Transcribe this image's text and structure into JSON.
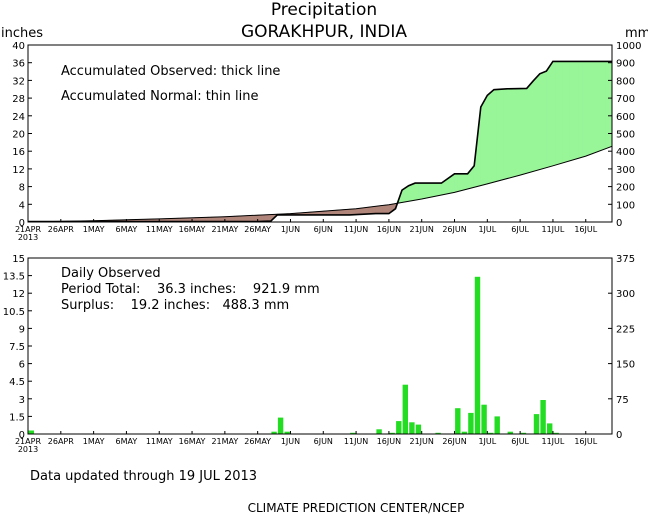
{
  "header": {
    "title": "Precipitation",
    "location": "GORAKHPUR, INDIA",
    "left_unit": "inches",
    "right_unit": "mm"
  },
  "annotations": {
    "accum_observed": "Accumulated Observed: thick line",
    "accum_normal": "Accumulated Normal: thin line",
    "daily_observed": "Daily Observed",
    "period_total": "Period Total:    36.3 inches:    921.9 mm",
    "surplus": "Surplus:    19.2 inches:   488.3 mm"
  },
  "footer": {
    "updated": "Data updated through 19 JUL 2013",
    "credit": "CLIMATE PREDICTION CENTER/NCEP"
  },
  "colors": {
    "surplus_fill": "#98f598",
    "deficit_fill": "#b0857a",
    "daily_bar": "#22dd22",
    "line": "#000000"
  },
  "chart_data": [
    {
      "type": "line",
      "title": "Precipitation",
      "subtitle": "GORAKHPUR, INDIA",
      "ylabel": "inches",
      "y2label": "mm",
      "ylim": [
        0,
        40
      ],
      "y2lim": [
        0,
        1000
      ],
      "x_ticks": [
        "21APR\n2013",
        "26APR",
        "1MAY",
        "6MAY",
        "11MAY",
        "16MAY",
        "21MAY",
        "26MAY",
        "1JUN",
        "6JUN",
        "11JUN",
        "16JUN",
        "21JUN",
        "26JUN",
        "1JUL",
        "6JUL",
        "11JUL",
        "16JUL"
      ],
      "y_ticks": [
        "0",
        "4",
        "8",
        "12",
        "16",
        "20",
        "24",
        "28",
        "32",
        "36",
        "40"
      ],
      "y2_ticks": [
        "0",
        "100",
        "200",
        "300",
        "400",
        "500",
        "600",
        "700",
        "800",
        "900",
        "1000"
      ],
      "series": [
        {
          "name": "Accumulated Observed",
          "x": [
            "2013-04-21",
            "2013-05-26",
            "2013-05-28",
            "2013-05-29",
            "2013-06-01",
            "2013-06-09",
            "2013-06-13",
            "2013-06-15",
            "2013-06-16",
            "2013-06-17",
            "2013-06-18",
            "2013-06-19",
            "2013-06-21",
            "2013-06-22",
            "2013-06-23",
            "2013-06-25",
            "2013-06-27",
            "2013-06-28",
            "2013-06-29",
            "2013-06-30",
            "2013-07-01",
            "2013-07-03",
            "2013-07-06",
            "2013-07-07",
            "2013-07-08",
            "2013-07-09",
            "2013-07-10",
            "2013-07-19"
          ],
          "y": [
            0.1,
            0.1,
            0.2,
            1.6,
            1.6,
            1.6,
            1.9,
            1.9,
            3.0,
            7.2,
            8.2,
            8.8,
            8.8,
            8.8,
            8.8,
            10.9,
            10.9,
            12.7,
            26.0,
            28.6,
            29.9,
            30.1,
            30.2,
            31.9,
            33.5,
            34.1,
            36.3,
            36.3
          ]
        },
        {
          "name": "Accumulated Normal",
          "x": [
            "2013-04-21",
            "2013-05-01",
            "2013-05-11",
            "2013-05-21",
            "2013-05-31",
            "2013-06-10",
            "2013-06-15",
            "2013-06-20",
            "2013-06-25",
            "2013-06-30",
            "2013-07-05",
            "2013-07-10",
            "2013-07-15",
            "2013-07-19"
          ],
          "y": [
            0.0,
            0.3,
            0.7,
            1.2,
            1.9,
            3.0,
            3.9,
            5.2,
            6.7,
            8.6,
            10.6,
            12.7,
            14.9,
            17.1
          ]
        }
      ]
    },
    {
      "type": "bar",
      "title": "Daily Observed",
      "ylim": [
        0,
        15
      ],
      "y2lim": [
        0,
        375
      ],
      "y_ticks": [
        "0",
        "1.5",
        "3",
        "4.5",
        "6",
        "7.5",
        "9",
        "10.5",
        "12",
        "13.5",
        "15"
      ],
      "y2_ticks": [
        "0",
        "75",
        "150",
        "225",
        "300",
        "375"
      ],
      "x_ticks": [
        "21APR\n2013",
        "26APR",
        "1MAY",
        "6MAY",
        "11MAY",
        "16MAY",
        "21MAY",
        "26MAY",
        "1JUN",
        "6JUN",
        "11JUN",
        "16JUN",
        "21JUN",
        "26JUN",
        "1JUL",
        "6JUL",
        "11JUL",
        "16JUL"
      ],
      "series": [
        {
          "name": "Daily Observed",
          "x": [
            "2013-04-21",
            "2013-05-28",
            "2013-05-29",
            "2013-05-30",
            "2013-06-09",
            "2013-06-13",
            "2013-06-15",
            "2013-06-16",
            "2013-06-17",
            "2013-06-18",
            "2013-06-19",
            "2013-06-22",
            "2013-06-25",
            "2013-06-26",
            "2013-06-27",
            "2013-06-28",
            "2013-06-29",
            "2013-06-30",
            "2013-07-01",
            "2013-07-03",
            "2013-07-05",
            "2013-07-07",
            "2013-07-08",
            "2013-07-09",
            "2013-07-10"
          ],
          "y": [
            0.3,
            0.2,
            1.4,
            0.2,
            0.1,
            0.4,
            0.1,
            1.1,
            4.2,
            1.0,
            0.8,
            0.1,
            2.2,
            0.2,
            1.8,
            13.4,
            2.5,
            0.1,
            1.5,
            0.2,
            0.1,
            1.7,
            2.9,
            0.9,
            0.1
          ]
        }
      ]
    }
  ]
}
